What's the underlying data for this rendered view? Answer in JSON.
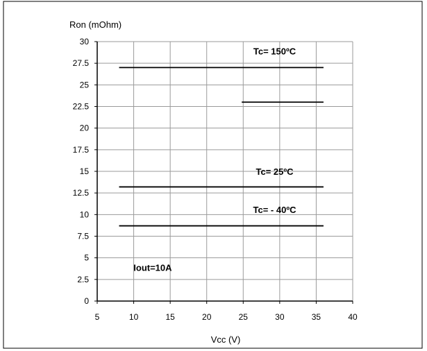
{
  "chart_data": {
    "type": "line",
    "title": "",
    "ylabel": "Ron (mOhm)",
    "xlabel": "Vcc (V)",
    "xlim": [
      5,
      40
    ],
    "ylim": [
      0,
      30
    ],
    "x_ticks": [
      "5",
      "10",
      "15",
      "20",
      "25",
      "30",
      "35",
      "40"
    ],
    "y_ticks": [
      "0",
      "2.5",
      "5",
      "7.5",
      "10",
      "12.5",
      "15",
      "17.5",
      "20",
      "22.5",
      "25",
      "27.5",
      "30"
    ],
    "grid": true,
    "legend": "none",
    "series": [
      {
        "x": [
          8,
          36
        ],
        "y": [
          27.0,
          27.0
        ]
      },
      {
        "x": [
          24.8,
          36
        ],
        "y": [
          23.0,
          23.0
        ]
      },
      {
        "x": [
          8,
          36
        ],
        "y": [
          13.2,
          13.2
        ]
      },
      {
        "x": [
          8,
          36
        ],
        "y": [
          8.7,
          8.7
        ]
      }
    ],
    "annotations": [
      {
        "text": "Tc= 150ºC",
        "x": 29.3,
        "y": 28.5
      },
      {
        "text": "Tc= 25ºC",
        "x": 29.3,
        "y": 14.6
      },
      {
        "text": "Tc= - 40ºC",
        "x": 29.3,
        "y": 10.2
      },
      {
        "text": "Iout=10A",
        "x": 12.6,
        "y": 3.5
      }
    ]
  }
}
